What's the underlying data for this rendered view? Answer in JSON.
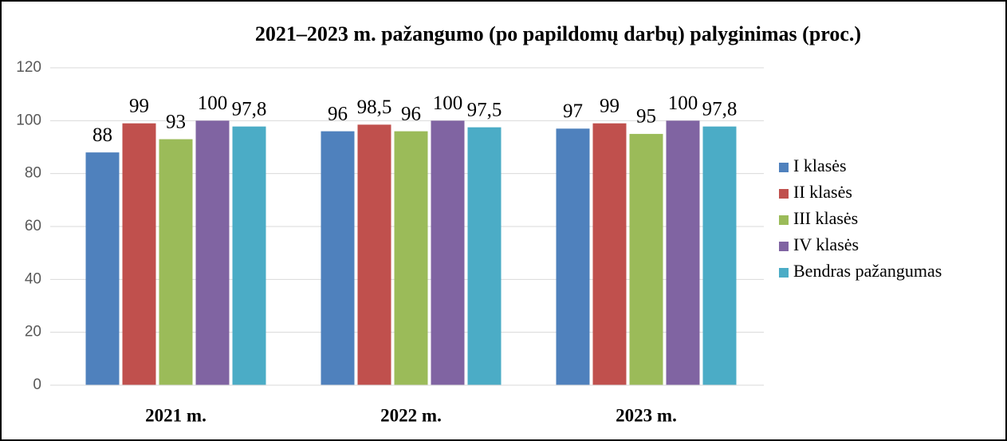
{
  "chart_data": {
    "type": "bar",
    "title": "2021–2023 m. pažangumo (po papildomų darbų) palyginimas (proc.)",
    "categories": [
      "2021 m.",
      "2022 m.",
      "2023 m."
    ],
    "series": [
      {
        "name": "I klasės",
        "color": "#4f81bd",
        "values": [
          88,
          96,
          97
        ]
      },
      {
        "name": "II klasės",
        "color": "#c0504d",
        "values": [
          99,
          98.5,
          99
        ],
        "value_labels": [
          "99",
          "98,5",
          "99"
        ]
      },
      {
        "name": "III klasės",
        "color": "#9bbb59",
        "values": [
          93,
          96,
          95
        ]
      },
      {
        "name": "IV klasės",
        "color": "#8064a2",
        "values": [
          100,
          100,
          100
        ]
      },
      {
        "name": "Bendras pažangumas",
        "color": "#4bacc6",
        "values": [
          97.8,
          97.5,
          97.8
        ],
        "value_labels": [
          "97,8",
          "97,5",
          "97,8"
        ]
      }
    ],
    "ylim": [
      0,
      120
    ],
    "yticks": [
      0,
      20,
      40,
      60,
      80,
      100,
      120
    ],
    "grid": true,
    "legend": "right"
  }
}
